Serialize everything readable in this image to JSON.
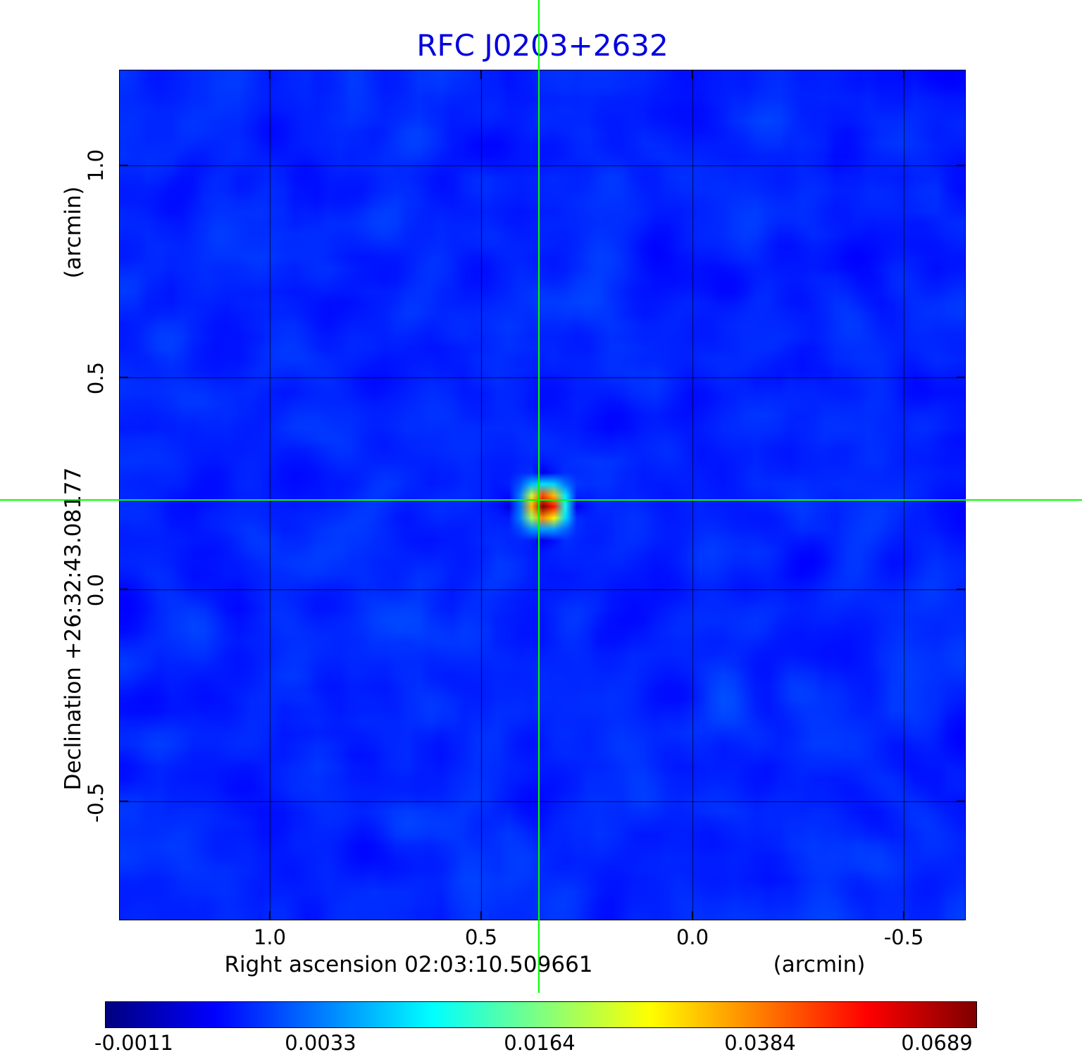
{
  "title": "RFC J0203+2632",
  "axes": {
    "x_label": "Right ascension  02:03:10.509661",
    "x_unit": "(arcmin)",
    "y_label": "Declination  +26:32:43.08177",
    "y_unit": "(arcmin)",
    "x_tick_labels": [
      "1.0",
      "0.5",
      "0.0",
      "-0.5"
    ],
    "y_tick_labels": [
      "1.0",
      "0.5",
      "0.0",
      "-0.5"
    ]
  },
  "colorbar": {
    "tick_labels": [
      "-0.0011",
      "0.0033",
      "0.0164",
      "0.0384",
      "0.0689"
    ],
    "tick_positions": [
      0.032,
      0.247,
      0.498,
      0.752,
      0.955
    ]
  },
  "colors": {
    "title": "#0000dd",
    "crosshair": "#00ff00",
    "grid": "#000000",
    "background": "#ffffff"
  },
  "chart_data": {
    "type": "heatmap",
    "title": "RFC J0203+2632",
    "xlabel": "Right ascension 02:03:10.509661 (arcmin)",
    "ylabel": "Declination +26:32:43.08177 (arcmin)",
    "x_range": [
      1.355,
      -0.645
    ],
    "y_range": [
      -0.779,
      1.224
    ],
    "x_ticks": [
      1.0,
      0.5,
      0.0,
      -0.5
    ],
    "y_ticks": [
      1.0,
      0.5,
      0.0,
      -0.5
    ],
    "grid": true,
    "colormap": "jet",
    "scale": "power",
    "intensity_range": [
      -0.0011,
      0.0689
    ],
    "intensity_ticks": [
      -0.0011,
      0.0033,
      0.0164,
      0.0384,
      0.0689
    ],
    "source": {
      "x_arcmin": 0.363,
      "y_arcmin": 0.211,
      "peak_intensity": 0.0689
    },
    "crosshair": {
      "x_arcmin": 0.363,
      "y_arcmin": 0.211
    }
  }
}
